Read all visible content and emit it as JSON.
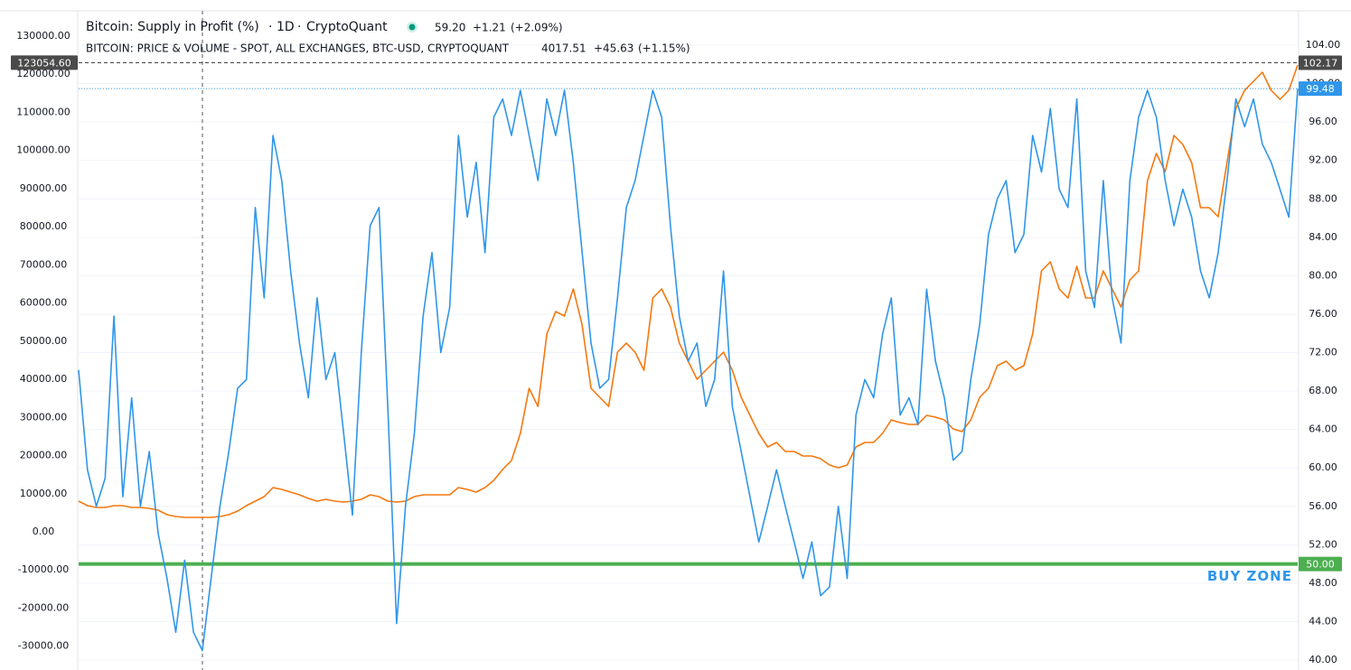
{
  "chart_data": {
    "type": "line",
    "header": {
      "interval": "1D",
      "source": "CryptoQuant",
      "separator": "·",
      "stats": [
        [
          "59.20",
          "+1.21",
          "(+2.09%)"
        ],
        [
          "4017.51",
          "+45.63",
          "(+1.15%)"
        ]
      ]
    },
    "series": [
      {
        "name": "Bitcoin: Supply in Profit (%)",
        "color": "#2f96ea",
        "axis": "y2",
        "values": [
          70.2,
          59.8,
          56,
          58.9,
          75.8,
          57,
          67.3,
          56,
          61.7,
          53.2,
          48.5,
          42.9,
          50.4,
          42.9,
          41,
          48.5,
          56,
          61.7,
          68.3,
          69.2,
          87.1,
          77.7,
          94.6,
          89.9,
          80.5,
          73,
          67.3,
          77.7,
          69.2,
          72,
          63.6,
          55.1,
          72,
          85.2,
          87.1,
          66.4,
          43.8,
          56,
          63.6,
          75.8,
          82.4,
          72,
          76.7,
          94.6,
          86.1,
          91.8,
          82.4,
          96.5,
          98.4,
          94.6,
          99.3,
          94.6,
          89.9,
          98.4,
          94.6,
          99.3,
          91.8,
          82.4,
          73,
          68.3,
          69.2,
          77.7,
          87.1,
          89.9,
          94.6,
          99.3,
          96.5,
          85.2,
          75.8,
          71.1,
          73,
          66.4,
          69.2,
          80.5,
          66.4,
          61.7,
          57,
          52.3,
          56,
          59.8,
          56,
          52.3,
          48.5,
          52.3,
          46.7,
          47.6,
          56,
          48.5,
          65.5,
          69.2,
          67.3,
          73.9,
          77.7,
          65.5,
          67.3,
          64.5,
          78.6,
          71.1,
          67.3,
          60.8,
          61.7,
          69.2,
          74.9,
          84.3,
          88,
          89.9,
          82.4,
          84.3,
          94.6,
          90.8,
          97.4,
          89,
          87.1,
          98.4,
          80.5,
          76.7,
          89.9,
          77.7,
          73,
          89.9,
          96.5,
          99.3,
          96.5,
          89.9,
          85.2,
          89,
          86.1,
          80.5,
          77.7,
          82.4,
          89.9,
          98.4,
          95.5,
          98.4,
          93.7,
          91.8,
          89,
          86.1,
          99.48
        ]
      },
      {
        "name": "BITCOIN: PRICE & VOLUME - SPOT, ALL EXCHANGES, BTC-USD, CRYPTOQUANT",
        "color": "#f5780f",
        "axis": "y",
        "values": [
          8050,
          6870,
          6390,
          6390,
          6870,
          6870,
          6390,
          6390,
          6160,
          5680,
          4500,
          4030,
          3790,
          3790,
          3790,
          3790,
          4030,
          4500,
          5450,
          6870,
          8050,
          9240,
          11600,
          11130,
          10420,
          9710,
          8760,
          8050,
          8520,
          8050,
          7810,
          8050,
          8520,
          9710,
          9240,
          8050,
          7810,
          8050,
          9240,
          9710,
          9710,
          9710,
          9710,
          11600,
          11130,
          10420,
          11600,
          13500,
          16340,
          18710,
          25810,
          37650,
          32900,
          51860,
          57780,
          56590,
          63700,
          54230,
          37650,
          35280,
          32900,
          47120,
          49490,
          47120,
          42390,
          61330,
          63700,
          58960,
          49490,
          44750,
          40020,
          42390,
          44750,
          47120,
          42390,
          35280,
          30550,
          25810,
          22260,
          23440,
          21080,
          21080,
          19890,
          19890,
          19180,
          17520,
          16810,
          17520,
          22260,
          23440,
          23440,
          25810,
          29360,
          28650,
          28180,
          28180,
          30550,
          30070,
          29360,
          27000,
          26280,
          29360,
          35280,
          37650,
          43570,
          44750,
          42390,
          43570,
          51860,
          68430,
          70800,
          63700,
          61330,
          69620,
          61330,
          61330,
          68430,
          63700,
          58960,
          66070,
          68430,
          92110,
          99210,
          94480,
          103950,
          101580,
          96850,
          85010,
          85010,
          82640,
          96850,
          111060,
          115790,
          118160,
          120530,
          115790,
          113430,
          115790,
          122420
        ]
      }
    ],
    "ylim": [
      -36230,
      136630
    ],
    "yticks": [
      {
        "value": -30000,
        "label": "-30000.00"
      },
      {
        "value": -20000,
        "label": "-20000.00"
      },
      {
        "value": -10000,
        "label": "-10000.00"
      },
      {
        "value": 0,
        "label": "0.00"
      },
      {
        "value": 10000,
        "label": "10000.00"
      },
      {
        "value": 20000,
        "label": "20000.00"
      },
      {
        "value": 30000,
        "label": "30000.00"
      },
      {
        "value": 40000,
        "label": "40000.00"
      },
      {
        "value": 50000,
        "label": "50000.00"
      },
      {
        "value": 60000,
        "label": "60000.00"
      },
      {
        "value": 70000,
        "label": "70000.00"
      },
      {
        "value": 80000,
        "label": "80000.00"
      },
      {
        "value": 90000,
        "label": "90000.00"
      },
      {
        "value": 100000,
        "label": "100000.00"
      },
      {
        "value": 110000,
        "label": "110000.00"
      },
      {
        "value": 120000,
        "label": "120000.00"
      },
      {
        "value": 130000,
        "label": "130000.00"
      }
    ],
    "y2lim": [
      38.97,
      107.57
    ],
    "y2ticks": [
      {
        "value": 40,
        "label": "40.00"
      },
      {
        "value": 44,
        "label": "44.00"
      },
      {
        "value": 48,
        "label": "48.00"
      },
      {
        "value": 52,
        "label": "52.00"
      },
      {
        "value": 56,
        "label": "56.00"
      },
      {
        "value": 60,
        "label": "60.00"
      },
      {
        "value": 64,
        "label": "64.00"
      },
      {
        "value": 68,
        "label": "68.00"
      },
      {
        "value": 72,
        "label": "72.00"
      },
      {
        "value": 76,
        "label": "76.00"
      },
      {
        "value": 80,
        "label": "80.00"
      },
      {
        "value": 84,
        "label": "84.00"
      },
      {
        "value": 88,
        "label": "88.00"
      },
      {
        "value": 92,
        "label": "92.00"
      },
      {
        "value": 96,
        "label": "96.00"
      },
      {
        "value": 100,
        "label": "100.00"
      },
      {
        "value": 104,
        "label": "104.00"
      }
    ],
    "grid": true,
    "markers": [
      {
        "value": 123054.6,
        "label": "123054.60",
        "axis": "y",
        "color": "#4a4a4a",
        "line": "dashed"
      },
      {
        "value": 102.17,
        "label": "102.17",
        "axis": "y2",
        "color": "#4a4a4a",
        "line": "dashed"
      },
      {
        "value": 99.48,
        "label": "99.48",
        "axis": "y2",
        "color": "#2f96ea",
        "line": "dotted"
      }
    ],
    "zone": {
      "value": 50,
      "label": "50.00",
      "text": "BUY ZONE",
      "color": "#4caf50",
      "axis": "y2"
    }
  }
}
